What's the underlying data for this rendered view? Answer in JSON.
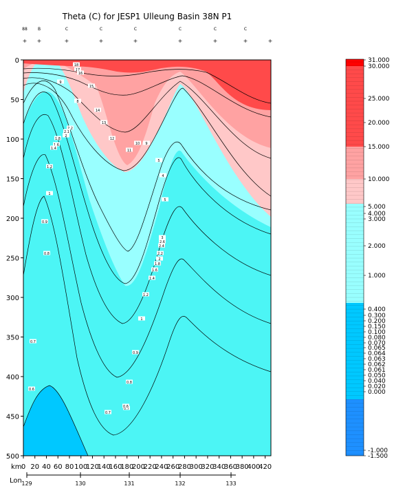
{
  "chart_data": {
    "type": "heatmap",
    "title": "Theta (C) for JESP1 Ulleung Basin 38N P1",
    "xlabel": "km",
    "x2label": "Lon",
    "ylabel": "",
    "ylim": [
      0,
      500
    ],
    "xlim": [
      0,
      430
    ],
    "y_ticks": [
      "0",
      "50",
      "100",
      "150",
      "200",
      "250",
      "300",
      "350",
      "400",
      "450",
      "500"
    ],
    "x_ticks": [
      "0",
      "20",
      "40",
      "60",
      "80",
      "100",
      "120",
      "140",
      "160",
      "180",
      "200",
      "220",
      "240",
      "260",
      "280",
      "300",
      "320",
      "340",
      "360",
      "380",
      "400",
      "420"
    ],
    "lon_ticks": [
      "129",
      "130",
      "131",
      "132",
      "133"
    ],
    "station_codes": [
      "88",
      "B",
      "C",
      "C",
      "C",
      "C",
      "C",
      "C"
    ],
    "colorbar_labels": [
      "31.000",
      "30.000",
      "25.000",
      "20.000",
      "15.000",
      "10.000",
      "5.000",
      "4.000",
      "3.000",
      "2.000",
      "1.000",
      "0.400",
      "0.300",
      "0.200",
      "0.150",
      "0.100",
      "0.080",
      "0.070",
      "0.065",
      "0.064",
      "0.063",
      "0.062",
      "0.061",
      "0.050",
      "0.040",
      "0.020",
      "0.000",
      "-1.000",
      "-1.500"
    ],
    "contour_labels": [
      "18",
      "17",
      "16",
      "9",
      "15",
      "8",
      "14",
      "13",
      "12",
      "11",
      "10",
      "9",
      "5",
      "4",
      "5",
      "3",
      "2.6",
      "2.4",
      "2.2",
      "2",
      "1.8",
      "1.6",
      "1.4",
      "1.2",
      "1",
      "0.9",
      "0.8",
      "0.7",
      "2.2",
      "2.1",
      "2",
      "1.8",
      "1.6",
      "1.4",
      "1.2",
      "1",
      "0.9",
      "0.8",
      "0.7",
      "0.6",
      "0.7",
      "0.6"
    ],
    "colors": {
      "red_dark": "#ff0000",
      "red": "#ff4a4a",
      "pink": "#ffa2a2",
      "pink_light": "#ffc8c8",
      "cyan_light": "#99ffff",
      "cyan": "#4cf5f5",
      "sky": "#00c8ff",
      "blue": "#1e90ff"
    }
  }
}
